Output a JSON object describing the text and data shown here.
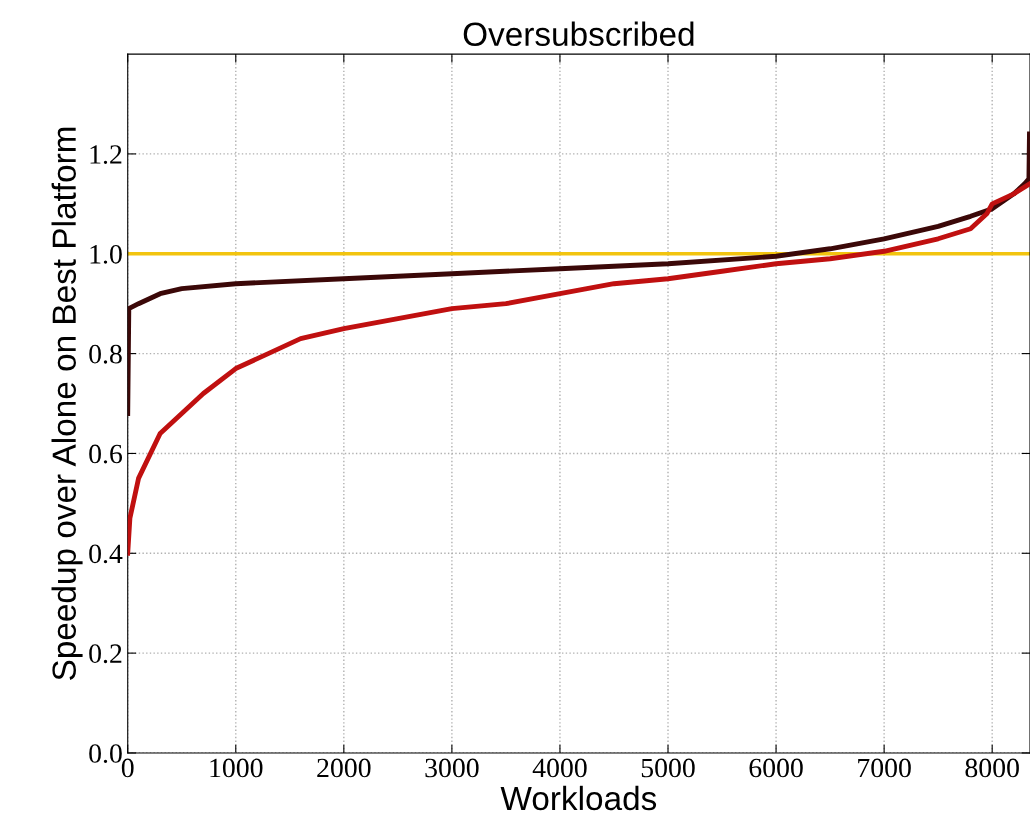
{
  "chart_data": {
    "type": "line",
    "title": "Oversubscribed",
    "xlabel": "Workloads",
    "ylabel": "Speedup over Alone on Best Platform",
    "xlim": [
      0,
      8350
    ],
    "ylim": [
      0,
      1.4
    ],
    "xticks": [
      0,
      1000,
      2000,
      3000,
      4000,
      5000,
      6000,
      7000,
      8000
    ],
    "yticks": [
      {
        "value": 0,
        "label": "0.0"
      },
      0.2,
      0.4,
      0.6,
      0.8,
      {
        "value": 1,
        "label": "1.0"
      },
      1.2
    ],
    "grid": true,
    "marker": "none",
    "line_style": "solid",
    "ref_lines": [
      {
        "axis": "y",
        "value": 1,
        "color": "#f2c40f",
        "line_style": "solid"
      }
    ],
    "series": [
      {
        "color": "#3b0808",
        "x": [
          0,
          10,
          100,
          300,
          500,
          1000,
          2000,
          3000,
          4000,
          5000,
          6000,
          6500,
          7000,
          7500,
          7800,
          8000,
          8200,
          8300,
          8340,
          8345
        ],
        "values": [
          0.68,
          0.89,
          0.9,
          0.92,
          0.93,
          0.94,
          0.95,
          0.96,
          0.97,
          0.98,
          0.995,
          1.01,
          1.03,
          1.055,
          1.075,
          1.09,
          1.12,
          1.14,
          1.15,
          1.24
        ]
      },
      {
        "color": "#c01010",
        "x": [
          0,
          20,
          100,
          300,
          500,
          700,
          1000,
          1300,
          1600,
          2000,
          2500,
          3000,
          3500,
          4000,
          4500,
          5000,
          5500,
          6000,
          6500,
          7000,
          7500,
          7800,
          7950,
          8000,
          8200,
          8345
        ],
        "values": [
          0.4,
          0.47,
          0.55,
          0.64,
          0.68,
          0.72,
          0.77,
          0.8,
          0.83,
          0.85,
          0.87,
          0.89,
          0.9,
          0.92,
          0.94,
          0.95,
          0.965,
          0.98,
          0.99,
          1.005,
          1.03,
          1.05,
          1.08,
          1.1,
          1.12,
          1.14
        ]
      }
    ]
  }
}
